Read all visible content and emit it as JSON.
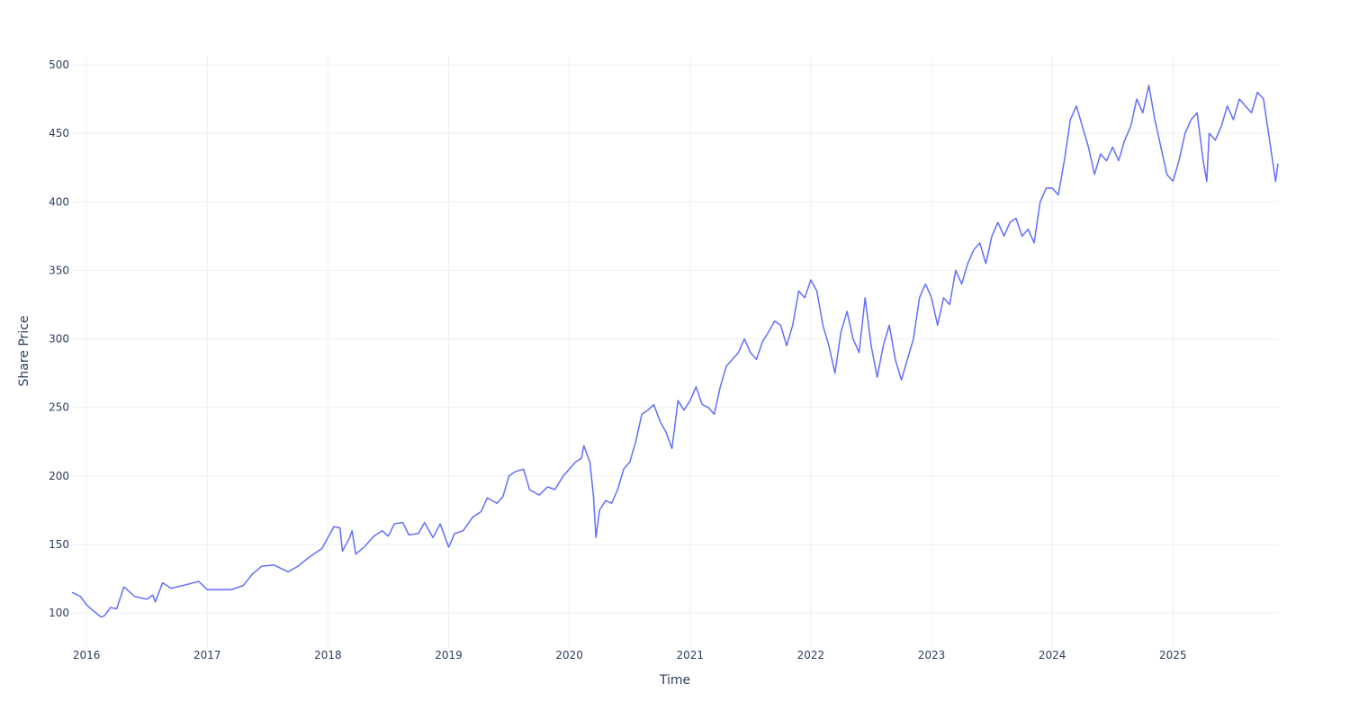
{
  "chart_data": {
    "type": "line",
    "xlabel": "Time",
    "ylabel": "Share Price",
    "x": [
      2015.88,
      2015.95,
      2016.0,
      2016.05,
      2016.08,
      2016.12,
      2016.15,
      2016.2,
      2016.25,
      2016.31,
      2016.4,
      2016.5,
      2016.55,
      2016.57,
      2016.63,
      2016.7,
      2016.8,
      2016.93,
      2017.0,
      2017.1,
      2017.2,
      2017.3,
      2017.37,
      2017.45,
      2017.55,
      2017.67,
      2017.75,
      2017.85,
      2017.95,
      2018.0,
      2018.05,
      2018.1,
      2018.12,
      2018.18,
      2018.2,
      2018.23,
      2018.3,
      2018.38,
      2018.45,
      2018.5,
      2018.55,
      2018.62,
      2018.67,
      2018.75,
      2018.8,
      2018.87,
      2018.93,
      2019.0,
      2019.05,
      2019.12,
      2019.2,
      2019.27,
      2019.32,
      2019.4,
      2019.45,
      2019.5,
      2019.55,
      2019.62,
      2019.67,
      2019.75,
      2019.82,
      2019.88,
      2019.95,
      2020.0,
      2020.05,
      2020.1,
      2020.12,
      2020.17,
      2020.2,
      2020.22,
      2020.25,
      2020.3,
      2020.35,
      2020.4,
      2020.45,
      2020.5,
      2020.55,
      2020.6,
      2020.65,
      2020.7,
      2020.75,
      2020.8,
      2020.85,
      2020.9,
      2020.95,
      2021.0,
      2021.05,
      2021.1,
      2021.15,
      2021.2,
      2021.25,
      2021.3,
      2021.35,
      2021.4,
      2021.45,
      2021.5,
      2021.55,
      2021.6,
      2021.65,
      2021.7,
      2021.75,
      2021.8,
      2021.85,
      2021.9,
      2021.95,
      2022.0,
      2022.05,
      2022.1,
      2022.15,
      2022.2,
      2022.25,
      2022.3,
      2022.35,
      2022.4,
      2022.45,
      2022.5,
      2022.55,
      2022.6,
      2022.65,
      2022.7,
      2022.75,
      2022.8,
      2022.85,
      2022.9,
      2022.95,
      2023.0,
      2023.05,
      2023.1,
      2023.15,
      2023.2,
      2023.25,
      2023.3,
      2023.35,
      2023.4,
      2023.45,
      2023.5,
      2023.55,
      2023.6,
      2023.65,
      2023.7,
      2023.75,
      2023.8,
      2023.85,
      2023.9,
      2023.95,
      2024.0,
      2024.05,
      2024.1,
      2024.15,
      2024.2,
      2024.25,
      2024.3,
      2024.35,
      2024.4,
      2024.45,
      2024.5,
      2024.55,
      2024.6,
      2024.65,
      2024.7,
      2024.75,
      2024.8,
      2024.85,
      2024.9,
      2024.95,
      2025.0,
      2025.05,
      2025.1,
      2025.15,
      2025.2,
      2025.25,
      2025.28,
      2025.3,
      2025.35,
      2025.4,
      2025.45,
      2025.5,
      2025.55,
      2025.6,
      2025.65,
      2025.7,
      2025.75,
      2025.8,
      2025.85,
      2025.87
    ],
    "series": [
      {
        "name": "Share Price",
        "color": "#636efa",
        "values": [
          115,
          112,
          106,
          102,
          100,
          97,
          98,
          104,
          103,
          119,
          112,
          110,
          113,
          108,
          122,
          118,
          120,
          123,
          117,
          117,
          117,
          120,
          128,
          134,
          135,
          130,
          134,
          141,
          147,
          155,
          163,
          162,
          145,
          155,
          160,
          143,
          148,
          156,
          160,
          156,
          165,
          166,
          157,
          158,
          166,
          155,
          165,
          148,
          158,
          160,
          170,
          174,
          184,
          180,
          185,
          200,
          203,
          205,
          190,
          186,
          192,
          190,
          200,
          205,
          210,
          213,
          222,
          210,
          185,
          155,
          175,
          182,
          180,
          190,
          205,
          210,
          225,
          245,
          248,
          252,
          240,
          232,
          220,
          255,
          248,
          255,
          265,
          252,
          250,
          245,
          265,
          280,
          285,
          290,
          300,
          290,
          285,
          298,
          305,
          313,
          310,
          295,
          310,
          335,
          330,
          343,
          335,
          310,
          295,
          275,
          305,
          320,
          300,
          290,
          330,
          295,
          272,
          295,
          310,
          285,
          270,
          285,
          300,
          330,
          340,
          330,
          310,
          330,
          325,
          350,
          340,
          355,
          365,
          370,
          355,
          375,
          385,
          375,
          385,
          388,
          375,
          380,
          370,
          400,
          410,
          410,
          405,
          430,
          460,
          470,
          455,
          440,
          420,
          435,
          430,
          440,
          430,
          445,
          455,
          475,
          465,
          485,
          460,
          440,
          420,
          415,
          430,
          450,
          460,
          465,
          430,
          415,
          450,
          445,
          455,
          470,
          460,
          475,
          470,
          465,
          480,
          475,
          445,
          415,
          428
        ]
      }
    ],
    "xlim": [
      2015.88,
      2025.87
    ],
    "xticks": [
      2016,
      2017,
      2018,
      2019,
      2020,
      2021,
      2022,
      2023,
      2024,
      2025
    ],
    "ylim": [
      74.4,
      507.9
    ],
    "yticks": [
      100,
      150,
      200,
      250,
      300,
      350,
      400,
      450,
      500
    ],
    "grid": true
  }
}
